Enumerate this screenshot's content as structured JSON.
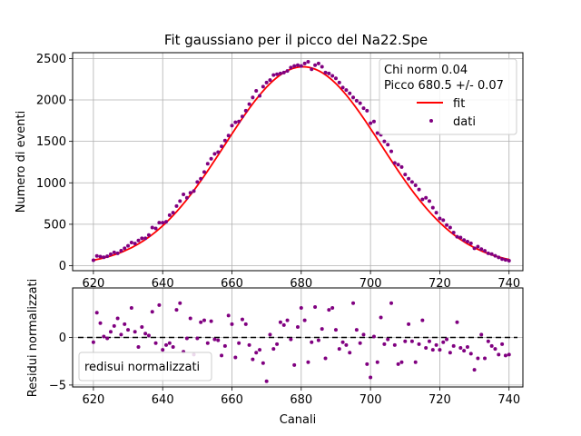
{
  "chart_data": [
    {
      "type": "scatter",
      "title": "Fit gaussiano per il picco del Na22.Spe",
      "xlabel": "",
      "ylabel": "Numero di eventi",
      "xlim": [
        614,
        744
      ],
      "ylim": [
        -60,
        2570
      ],
      "xticks": [
        620,
        640,
        660,
        680,
        700,
        720,
        740
      ],
      "yticks": [
        0,
        500,
        1000,
        1500,
        2000,
        2500
      ],
      "grid": true,
      "legend_position": "top-right",
      "annotations": [
        "Chi norm 0.04",
        "Picco 680.5 +/- 0.07"
      ],
      "fit": {
        "name": "fit",
        "color": "#ff0000",
        "amplitude": 2400,
        "mean": 680.5,
        "sigma": 22.6
      },
      "series": [
        {
          "name": "dati",
          "color": "#800080",
          "x": [
            620,
            621,
            622,
            623,
            624,
            625,
            626,
            627,
            628,
            629,
            630,
            631,
            632,
            633,
            634,
            635,
            636,
            637,
            638,
            639,
            640,
            641,
            642,
            643,
            644,
            645,
            646,
            647,
            648,
            649,
            650,
            651,
            652,
            653,
            654,
            655,
            656,
            657,
            658,
            659,
            660,
            661,
            662,
            663,
            664,
            665,
            666,
            667,
            668,
            669,
            670,
            671,
            672,
            673,
            674,
            675,
            676,
            677,
            678,
            679,
            680,
            681,
            682,
            683,
            684,
            685,
            686,
            687,
            688,
            689,
            690,
            691,
            692,
            693,
            694,
            695,
            696,
            697,
            698,
            699,
            700,
            701,
            702,
            703,
            704,
            705,
            706,
            707,
            708,
            709,
            710,
            711,
            712,
            713,
            714,
            715,
            716,
            717,
            718,
            719,
            720,
            721,
            722,
            723,
            724,
            725,
            726,
            727,
            728,
            729,
            730,
            731,
            732,
            733,
            734,
            735,
            736,
            737,
            738,
            739,
            740
          ],
          "y": [
            66,
            118,
            110,
            102,
            114,
            139,
            160,
            150,
            181,
            210,
            240,
            280,
            268,
            304,
            330,
            330,
            370,
            460,
            450,
            520,
            520,
            530,
            610,
            640,
            720,
            780,
            860,
            820,
            880,
            900,
            1010,
            1050,
            1130,
            1230,
            1290,
            1350,
            1370,
            1440,
            1510,
            1570,
            1690,
            1730,
            1740,
            1800,
            1870,
            1950,
            2030,
            2110,
            2050,
            2160,
            2210,
            2240,
            2300,
            2310,
            2320,
            2330,
            2350,
            2390,
            2410,
            2420,
            2410,
            2440,
            2460,
            2370,
            2420,
            2440,
            2400,
            2330,
            2320,
            2290,
            2260,
            2210,
            2150,
            2120,
            2080,
            2030,
            1990,
            1960,
            1900,
            1870,
            1720,
            1740,
            1600,
            1580,
            1500,
            1460,
            1380,
            1240,
            1220,
            1190,
            1100,
            1050,
            1010,
            970,
            920,
            800,
            820,
            780,
            700,
            640,
            570,
            550,
            490,
            460,
            400,
            350,
            340,
            310,
            290,
            270,
            210,
            230,
            200,
            180,
            150,
            140,
            120,
            100,
            80,
            70,
            60
          ]
        }
      ]
    },
    {
      "type": "scatter",
      "title": "",
      "xlabel": "Canali",
      "ylabel": "Residui normalizzati",
      "xlim": [
        614,
        744
      ],
      "ylim": [
        -5.2,
        5.2
      ],
      "xticks": [
        620,
        640,
        660,
        680,
        700,
        720,
        740
      ],
      "yticks": [
        -5,
        0
      ],
      "grid": true,
      "legend_position": "lower-left",
      "reference_line": {
        "y": 0,
        "style": "dashed",
        "color": "#000000"
      },
      "series": [
        {
          "name": "redisui normalizzati",
          "color": "#800080",
          "x": [
            620,
            621,
            622,
            623,
            624,
            625,
            626,
            627,
            628,
            629,
            630,
            631,
            632,
            633,
            634,
            635,
            636,
            637,
            638,
            639,
            640,
            641,
            642,
            643,
            644,
            645,
            646,
            647,
            648,
            649,
            650,
            651,
            652,
            653,
            654,
            655,
            656,
            657,
            658,
            659,
            660,
            661,
            662,
            663,
            664,
            665,
            666,
            667,
            668,
            669,
            670,
            671,
            672,
            673,
            674,
            675,
            676,
            677,
            678,
            679,
            680,
            681,
            682,
            683,
            684,
            685,
            686,
            687,
            688,
            689,
            690,
            691,
            692,
            693,
            694,
            695,
            696,
            697,
            698,
            699,
            700,
            701,
            702,
            703,
            704,
            705,
            706,
            707,
            708,
            709,
            710,
            711,
            712,
            713,
            714,
            715,
            716,
            717,
            718,
            719,
            720,
            721,
            722,
            723,
            724,
            725,
            726,
            727,
            728,
            729,
            730,
            731,
            732,
            733,
            734,
            735,
            736,
            737,
            738,
            739,
            740
          ],
          "y": [
            -0.5,
            2.6,
            1.5,
            0.1,
            -0.1,
            0.6,
            1.2,
            2.0,
            0.3,
            1.4,
            0.8,
            3.1,
            0.6,
            -1.0,
            1.1,
            0.4,
            0.2,
            2.7,
            -0.6,
            3.4,
            -1.3,
            -0.8,
            -0.6,
            -1.0,
            2.9,
            3.6,
            -1.5,
            -0.1,
            2.0,
            -1.8,
            -0.1,
            1.6,
            1.8,
            -0.6,
            1.7,
            -0.2,
            -0.3,
            -1.9,
            -0.9,
            2.3,
            1.4,
            -2.1,
            -0.6,
            1.9,
            1.4,
            -0.8,
            -2.3,
            -1.6,
            -1.3,
            -2.7,
            -4.6,
            0.3,
            -1.2,
            -0.7,
            1.6,
            1.3,
            1.8,
            -0.2,
            -2.9,
            1.1,
            3.1,
            1.8,
            -2.6,
            -0.5,
            3.2,
            -0.3,
            0.9,
            -2.2,
            2.9,
            3.1,
            0.8,
            -1.2,
            -0.5,
            -0.8,
            -1.6,
            3.6,
            0.8,
            -0.6,
            0.3,
            -2.8,
            -4.2,
            0.1,
            -2.6,
            2.1,
            -0.7,
            -0.2,
            3.6,
            -0.8,
            -2.8,
            -2.6,
            -0.4,
            1.4,
            -0.4,
            -2.6,
            -0.7,
            1.8,
            -1.1,
            -0.4,
            -1.3,
            -0.8,
            -1.3,
            -0.5,
            -0.2,
            -1.6,
            -0.9,
            1.6,
            -1.1,
            -1.4,
            -1.0,
            -1.7,
            -3.4,
            -2.2,
            0.3,
            -2.2,
            -0.4,
            -0.9,
            -1.2,
            -1.8,
            -0.7,
            -1.9,
            -1.8
          ]
        }
      ]
    }
  ]
}
